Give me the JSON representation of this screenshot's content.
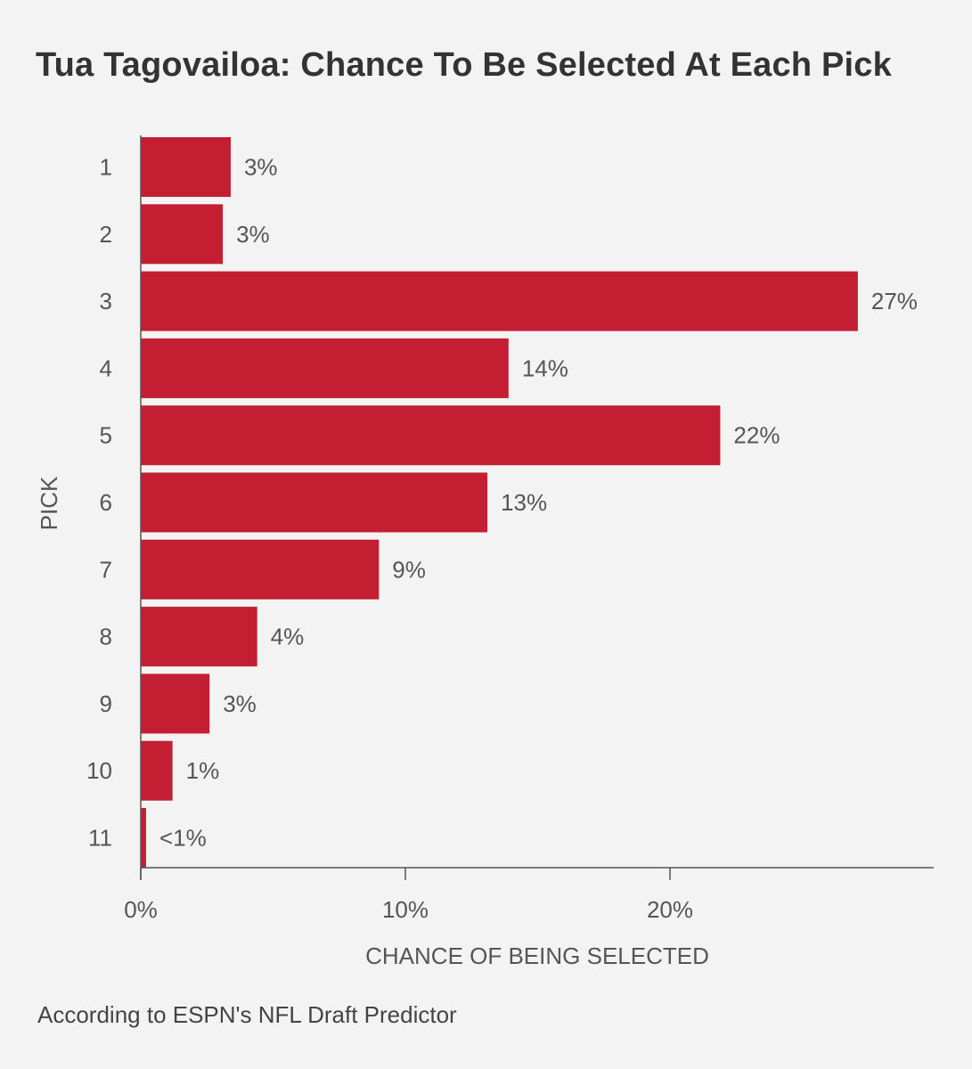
{
  "title": "Tua Tagovailoa: Chance To Be Selected At Each Pick",
  "footnote": "According to ESPN's NFL Draft Predictor",
  "colors": {
    "bar": "#c41e32",
    "text": "#333333",
    "axis": "#555555",
    "background": "#f3f3f3"
  },
  "chart_data": {
    "type": "bar",
    "orientation": "horizontal",
    "categories": [
      "1",
      "2",
      "3",
      "4",
      "5",
      "6",
      "7",
      "8",
      "9",
      "10",
      "11"
    ],
    "values": [
      3.4,
      3.1,
      27.1,
      13.9,
      21.9,
      13.1,
      9.0,
      4.4,
      2.6,
      1.2,
      0.2
    ],
    "data_labels": [
      "3%",
      "3%",
      "27%",
      "14%",
      "22%",
      "13%",
      "9%",
      "4%",
      "3%",
      "1%",
      "<1%"
    ],
    "xlabel": "CHANCE OF BEING SELECTED",
    "ylabel": "PICK",
    "xlim": [
      0,
      30
    ],
    "xticks": [
      0,
      10,
      20
    ],
    "xtick_labels": [
      "0%",
      "10%",
      "20%"
    ],
    "grid": false,
    "legend": "none"
  }
}
